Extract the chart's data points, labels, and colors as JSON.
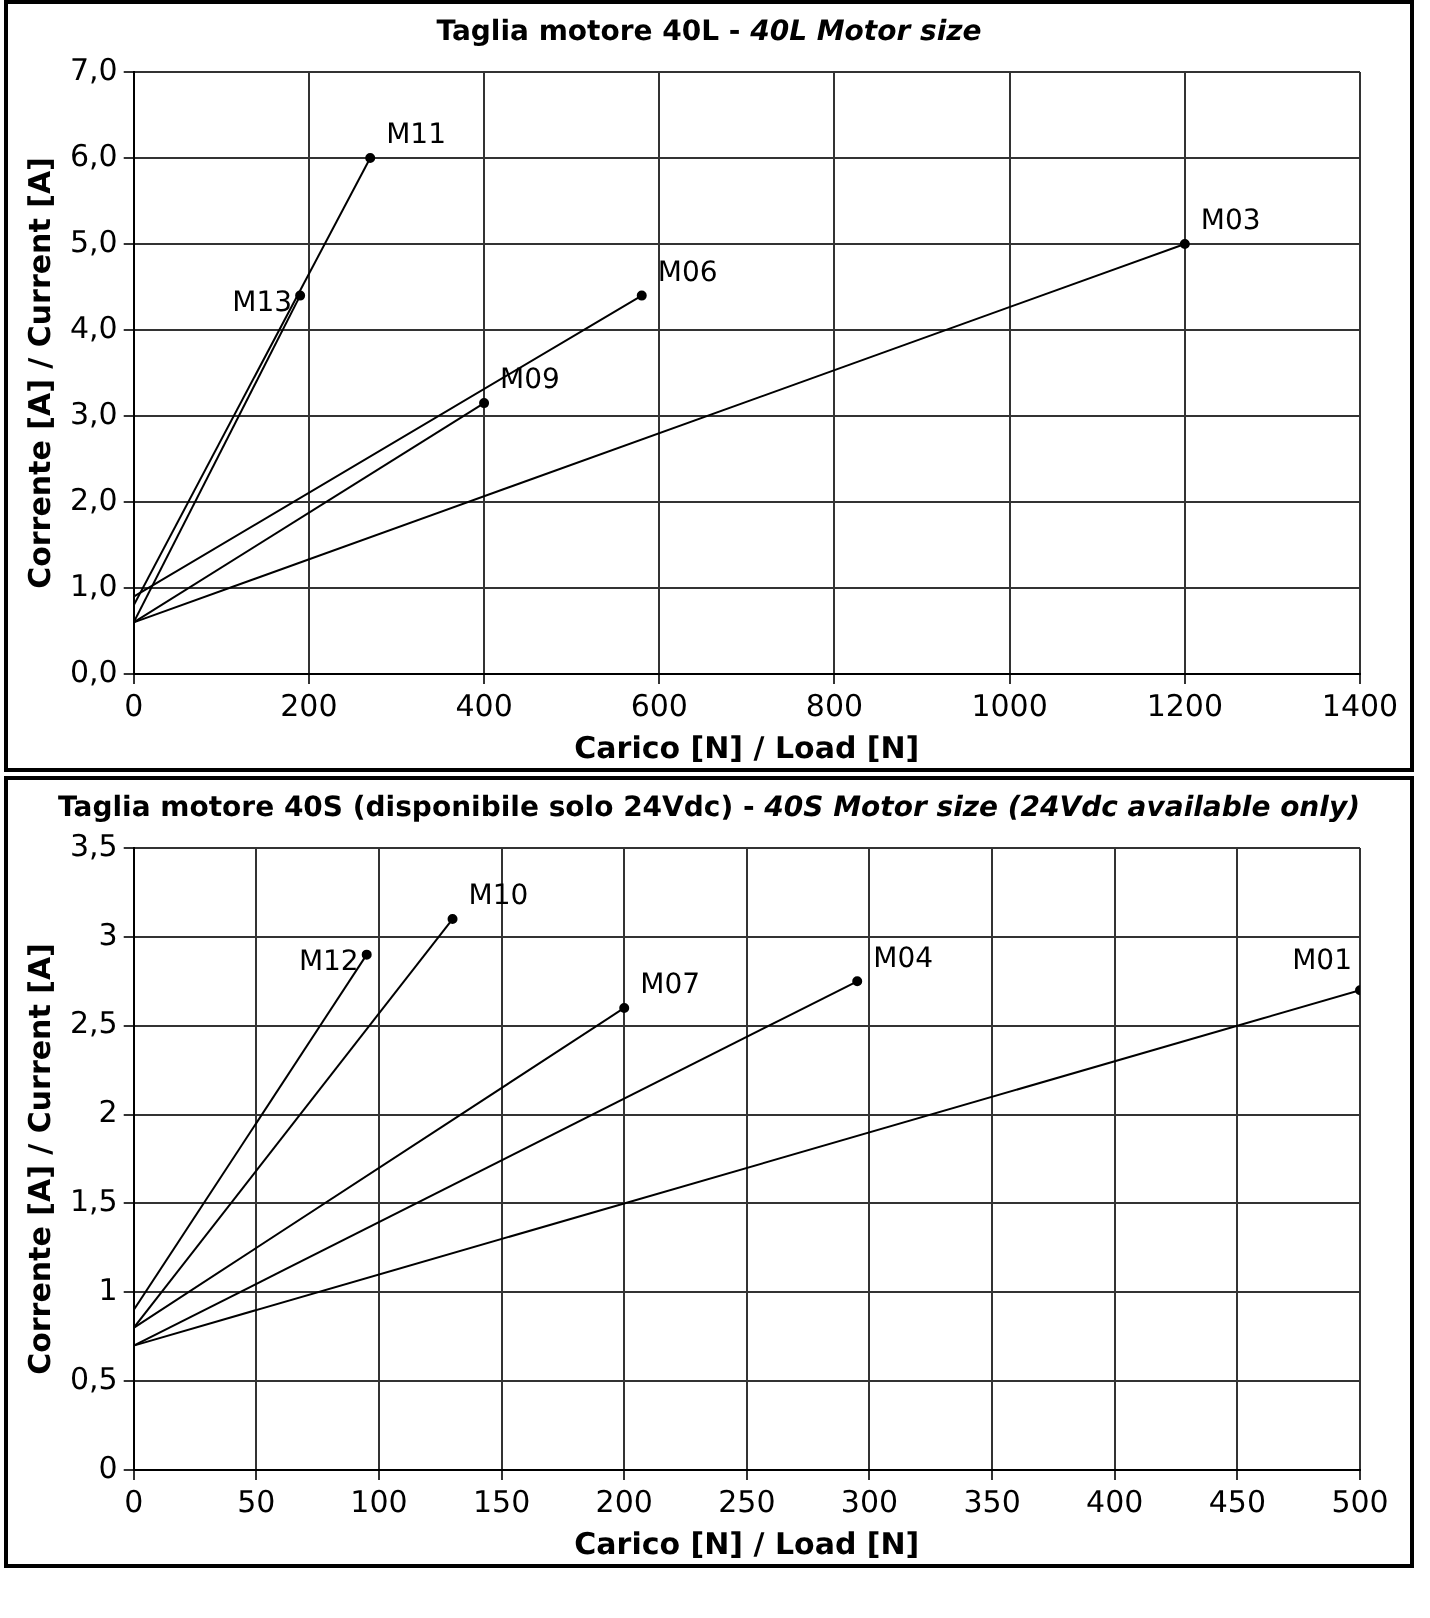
{
  "chart_data": [
    {
      "type": "line",
      "title": "Taglia motore 40L - 40L Motor size",
      "xlabel": "Carico [N] / Load [N]",
      "ylabel": "Corrente [A] / Current [A]",
      "xlim": [
        0,
        1400
      ],
      "xticks": [
        0,
        200,
        400,
        600,
        800,
        1000,
        1200,
        1400
      ],
      "ylim": [
        0,
        7
      ],
      "yticks": [
        {
          "value": 0,
          "label": "0,0"
        },
        {
          "value": 1,
          "label": "1,0"
        },
        {
          "value": 2,
          "label": "2,0"
        },
        {
          "value": 3,
          "label": "3,0"
        },
        {
          "value": 4,
          "label": "4,0"
        },
        {
          "value": 5,
          "label": "5,0"
        },
        {
          "value": 6,
          "label": "6,0"
        },
        {
          "value": 7,
          "label": "7,0"
        }
      ],
      "grid": true,
      "legend": false,
      "line_style": "solid",
      "series": [
        {
          "name": "M11",
          "color": "#000000",
          "x": [
            0,
            270
          ],
          "values": [
            0.8,
            6.0
          ]
        },
        {
          "name": "M13",
          "color": "#000000",
          "x": [
            0,
            190
          ],
          "values": [
            0.6,
            4.4
          ]
        },
        {
          "name": "M06",
          "color": "#000000",
          "x": [
            0,
            580
          ],
          "values": [
            0.9,
            4.4
          ]
        },
        {
          "name": "M09",
          "color": "#000000",
          "x": [
            0,
            400
          ],
          "values": [
            0.6,
            3.15
          ]
        },
        {
          "name": "M03",
          "color": "#000000",
          "x": [
            0,
            1200
          ],
          "values": [
            0.6,
            5.0
          ]
        }
      ]
    },
    {
      "type": "line",
      "title": "Taglia motore 40S (disponibile solo 24Vdc) - 40S Motor size (24Vdc available only)",
      "xlabel": "Carico [N] / Load [N]",
      "ylabel": "Corrente [A] / Current [A]",
      "xlim": [
        0,
        500
      ],
      "xticks": [
        0,
        50,
        100,
        150,
        200,
        250,
        300,
        350,
        400,
        450,
        500
      ],
      "ylim": [
        0,
        3.5
      ],
      "yticks": [
        0,
        {
          "value": 0.5,
          "label": "0,5"
        },
        1,
        {
          "value": 1.5,
          "label": "1,5"
        },
        2,
        {
          "value": 2.5,
          "label": "2,5"
        },
        3,
        {
          "value": 3.5,
          "label": "3,5"
        }
      ],
      "grid": true,
      "legend": false,
      "line_style": "solid",
      "series": [
        {
          "name": "M12",
          "color": "#000000",
          "x": [
            0,
            95
          ],
          "values": [
            0.9,
            2.9
          ]
        },
        {
          "name": "M10",
          "color": "#000000",
          "x": [
            0,
            130
          ],
          "values": [
            0.8,
            3.1
          ]
        },
        {
          "name": "M07",
          "color": "#000000",
          "x": [
            0,
            200
          ],
          "values": [
            0.8,
            2.6
          ]
        },
        {
          "name": "M04",
          "color": "#000000",
          "x": [
            0,
            295
          ],
          "values": [
            0.7,
            2.75
          ]
        },
        {
          "name": "M01",
          "color": "#000000",
          "x": [
            0,
            500
          ],
          "values": [
            0.7,
            2.7
          ]
        }
      ]
    }
  ]
}
